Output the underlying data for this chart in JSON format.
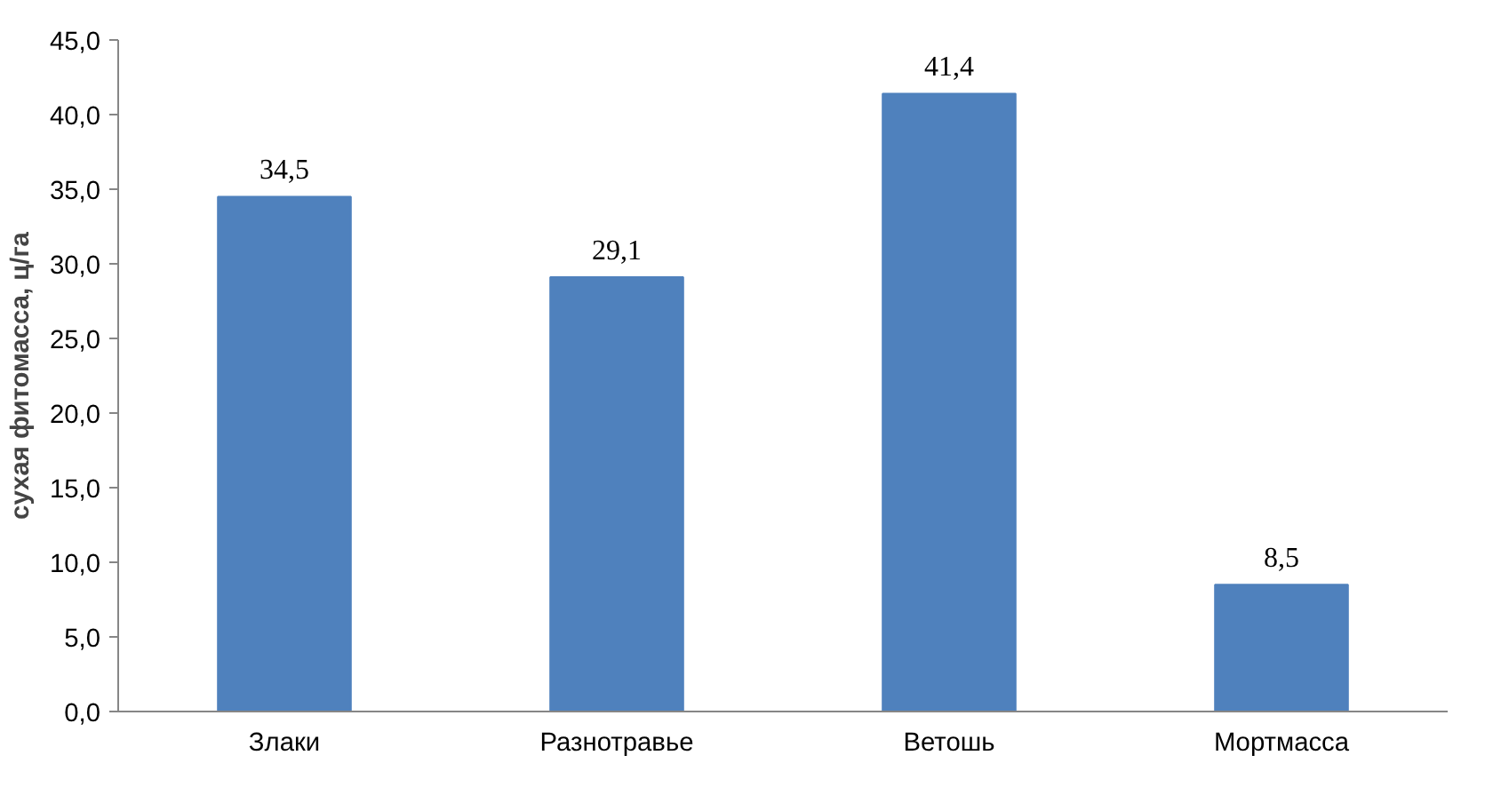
{
  "chart_data": {
    "type": "bar",
    "ylabel": "сухая фитомасса, ц/га",
    "categories": [
      "Злаки",
      "Разнотравье",
      "Ветошь",
      "Мортмасса"
    ],
    "values": [
      34.5,
      29.1,
      41.4,
      8.5
    ],
    "value_labels": [
      "34,5",
      "29,1",
      "41,4",
      "8,5"
    ],
    "color": "#4f81bd",
    "ylim": [
      0,
      45
    ],
    "yticks": [
      {
        "value": 0,
        "label": "0,0"
      },
      {
        "value": 5,
        "label": "5,0"
      },
      {
        "value": 10,
        "label": "10,0"
      },
      {
        "value": 15,
        "label": "15,0"
      },
      {
        "value": 20,
        "label": "20,0"
      },
      {
        "value": 25,
        "label": "25,0"
      },
      {
        "value": 30,
        "label": "30,0"
      },
      {
        "value": 35,
        "label": "35,0"
      },
      {
        "value": 40,
        "label": "40,0"
      },
      {
        "value": 45,
        "label": "45,0"
      }
    ],
    "grid": false
  }
}
